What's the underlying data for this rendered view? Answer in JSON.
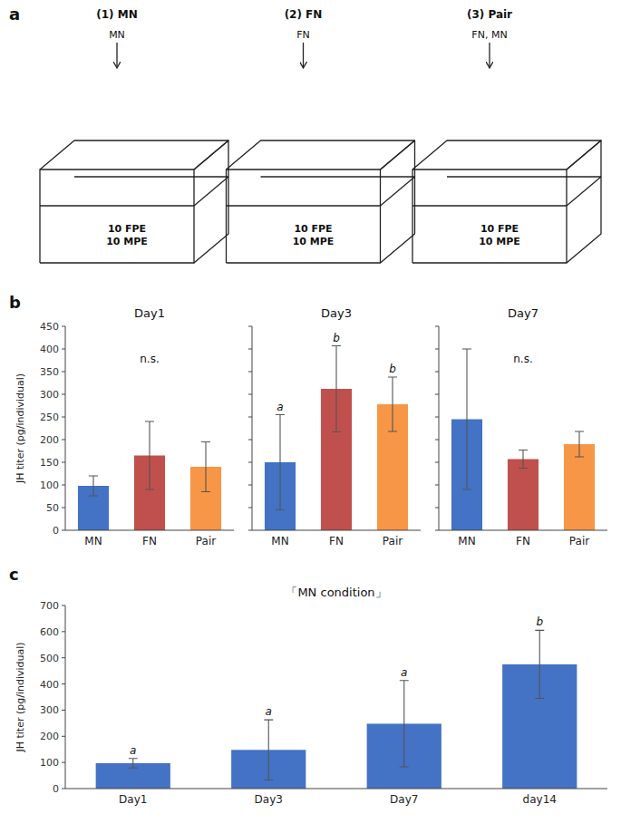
{
  "chart_data": [
    {
      "type": "diagram",
      "subtitle": "a",
      "categories": [
        "(1) MN",
        "(2) FN",
        "(3) Pair"
      ],
      "annotations": [
        [
          "MN",
          "10 FPE\n10 MPE"
        ],
        [
          "FN",
          "10 FPE\n10 MPE"
        ],
        [
          "FN, MN",
          "10 FPE\n10 MPE"
        ]
      ]
    },
    {
      "type": "bar",
      "subtitle": "b",
      "title": "Day1",
      "categories": [
        "MN",
        "FN",
        "Pair"
      ],
      "values": [
        98,
        165,
        140
      ],
      "errors": [
        22,
        75,
        55
      ],
      "colors": [
        "#4472C4",
        "#C0504D",
        "#F79646"
      ],
      "annotations": "n.s.",
      "ylabel": "JH titer (pg/individual)",
      "ylim": [
        0,
        450
      ],
      "yticks": [
        0,
        50,
        100,
        150,
        200,
        250,
        300,
        350,
        400,
        450
      ]
    },
    {
      "type": "bar",
      "title": "Day3",
      "categories": [
        "MN",
        "FN",
        "Pair"
      ],
      "values": [
        150,
        312,
        278
      ],
      "errors": [
        105,
        95,
        60
      ],
      "colors": [
        "#4472C4",
        "#C0504D",
        "#F79646"
      ],
      "annotations": [
        "a",
        "b",
        "b"
      ],
      "ylim": [
        0,
        450
      ],
      "yticks": [
        0,
        50,
        100,
        150,
        200,
        250,
        300,
        350,
        400,
        450
      ],
      "tick_labels": "x"
    },
    {
      "type": "bar",
      "title": "Day7",
      "categories": [
        "MN",
        "FN",
        "Pair"
      ],
      "values": [
        245,
        157,
        190
      ],
      "errors": [
        155,
        20,
        28
      ],
      "colors": [
        "#4472C4",
        "#C0504D",
        "#F79646"
      ],
      "annotations": "n.s.",
      "ylim": [
        0,
        450
      ],
      "yticks": [
        0,
        50,
        100,
        150,
        200,
        250,
        300,
        350,
        400,
        450
      ],
      "tick_labels": "x"
    },
    {
      "type": "bar",
      "subtitle": "c",
      "title": "「MN condition」",
      "categories": [
        "Day1",
        "Day3",
        "Day7",
        "day14"
      ],
      "values": [
        97,
        148,
        248,
        475
      ],
      "errors": [
        18,
        115,
        165,
        130
      ],
      "color": "#4472C4",
      "annotations": [
        "a",
        "a",
        "a",
        "b"
      ],
      "ylabel": "JH titer (pg/individual)",
      "ylim": [
        0,
        700
      ],
      "yticks": [
        0,
        100,
        200,
        300,
        400,
        500,
        600,
        700
      ]
    }
  ]
}
